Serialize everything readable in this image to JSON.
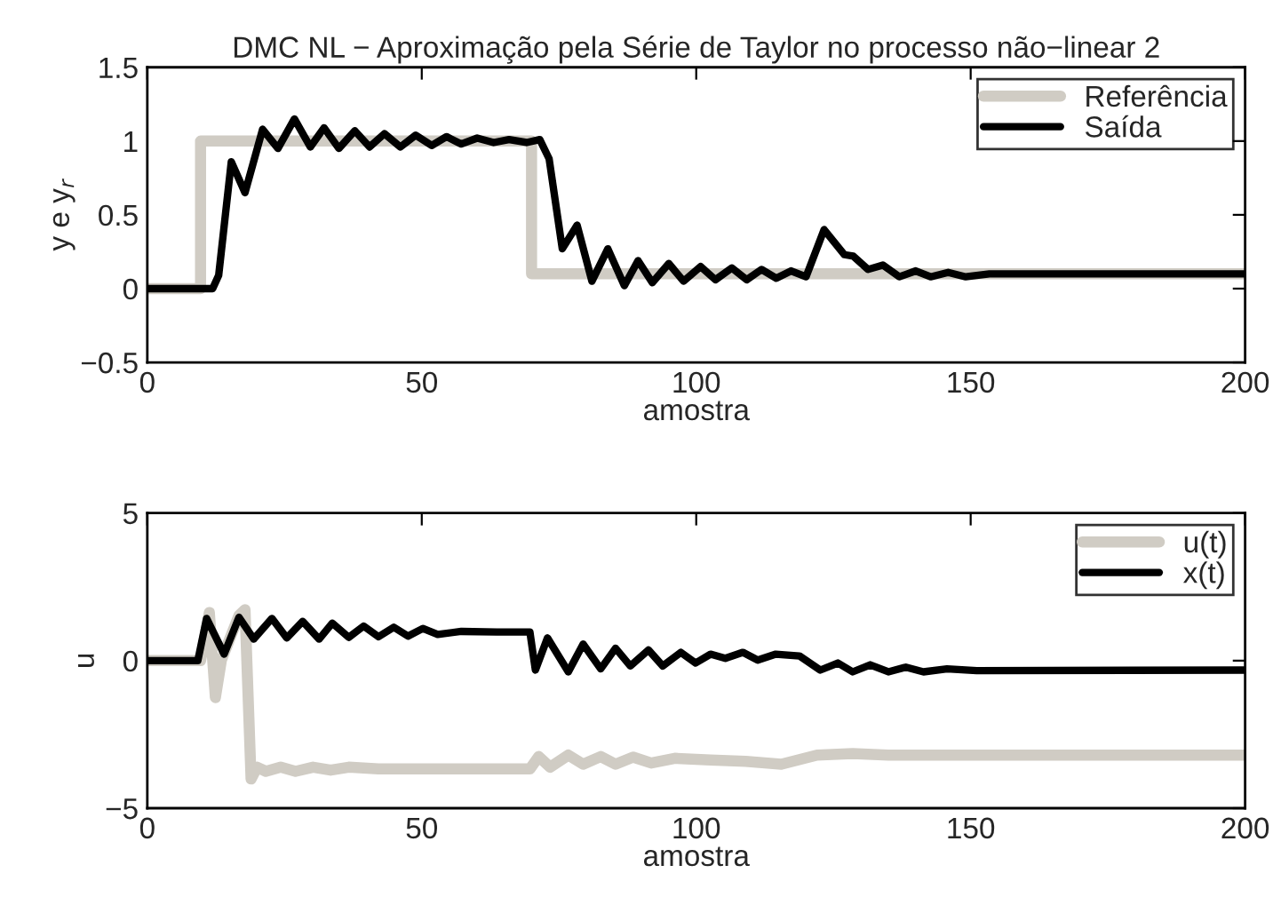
{
  "chart_data": [
    {
      "type": "line",
      "title": "DMC NL − Aproximação pela Série de Taylor no processo não−linear 2",
      "xlabel": "amostra",
      "ylabel": "y e y$_{r}$",
      "xlim": [
        0,
        200
      ],
      "xticks": [
        0,
        50,
        100,
        150,
        200
      ],
      "ylim": [
        -0.5,
        1.5
      ],
      "yticks": [
        {
          "value": -0.5,
          "label": "−0.5"
        },
        0,
        0.5,
        1,
        1.5
      ],
      "grid": false,
      "legend": "top right",
      "series": [
        {
          "name": "Referência",
          "color": "#d0ccc4",
          "x": [
            0,
            9.7,
            9.7,
            70,
            70,
            200
          ],
          "values": [
            0,
            0,
            1,
            1,
            0.1,
            0.1
          ]
        },
        {
          "name": "Saída",
          "color": "#000000",
          "x": [
            0,
            11.9,
            13,
            15.3,
            17.8,
            21,
            23.8,
            26.8,
            29.7,
            32.2,
            34.9,
            37.8,
            40.5,
            43.2,
            46.1,
            48.9,
            51.8,
            54.5,
            57.2,
            60.1,
            63.1,
            65.9,
            69.1,
            71.5,
            73.2,
            75.6,
            78.3,
            81,
            83.9,
            86.9,
            89.4,
            92,
            95,
            97.7,
            100.8,
            103.5,
            106.5,
            109.2,
            111.9,
            114.6,
            117.3,
            120,
            123.3,
            127,
            128.6,
            131.3,
            134,
            137,
            140,
            142.7,
            145.9,
            149.1,
            153.4,
            158.8,
            200
          ],
          "values": [
            0,
            0,
            0.09,
            0.86,
            0.65,
            1.08,
            0.95,
            1.15,
            0.96,
            1.09,
            0.95,
            1.07,
            0.96,
            1.05,
            0.96,
            1.04,
            0.97,
            1.03,
            0.98,
            1.02,
            0.99,
            1.01,
            0.99,
            1.01,
            0.88,
            0.27,
            0.43,
            0.05,
            0.27,
            0.02,
            0.19,
            0.04,
            0.17,
            0.05,
            0.15,
            0.06,
            0.14,
            0.06,
            0.13,
            0.07,
            0.12,
            0.08,
            0.4,
            0.23,
            0.22,
            0.13,
            0.16,
            0.08,
            0.12,
            0.08,
            0.11,
            0.08,
            0.1,
            0.1,
            0.1
          ]
        }
      ]
    },
    {
      "type": "line",
      "xlabel": "amostra",
      "ylabel": "u",
      "xlim": [
        0,
        200
      ],
      "xticks": [
        0,
        50,
        100,
        150,
        200
      ],
      "ylim": [
        -5,
        5
      ],
      "yticks": [
        {
          "value": -5,
          "label": "−5"
        },
        0,
        5
      ],
      "grid": false,
      "legend": "top right",
      "series": [
        {
          "name": "u(t)",
          "color": "#d0ccc4",
          "x": [
            0,
            9.7,
            11.3,
            12.4,
            13.5,
            16.7,
            17.8,
            18.9,
            20,
            21.6,
            24.3,
            27,
            30.2,
            33.4,
            36.7,
            42.1,
            52.9,
            69.7,
            71.3,
            73.4,
            76.7,
            79.4,
            82.6,
            85.3,
            88.5,
            91.8,
            96.1,
            102.6,
            109,
            115.5,
            122,
            128.5,
            135,
            145.7,
            200
          ],
          "values": [
            0,
            0,
            1.63,
            -1.25,
            0.02,
            1.53,
            1.73,
            -4.01,
            -3.61,
            -3.75,
            -3.61,
            -3.75,
            -3.61,
            -3.71,
            -3.61,
            -3.67,
            -3.67,
            -3.67,
            -3.25,
            -3.61,
            -3.2,
            -3.51,
            -3.25,
            -3.51,
            -3.27,
            -3.47,
            -3.31,
            -3.37,
            -3.41,
            -3.51,
            -3.2,
            -3.15,
            -3.2,
            -3.2,
            -3.2
          ]
        },
        {
          "name": "x(t)",
          "color": "#000000",
          "x": [
            0,
            9.2,
            10.8,
            14,
            16.7,
            19.4,
            22.7,
            25.4,
            28.3,
            31.3,
            33.7,
            36.7,
            39.4,
            42.1,
            44.9,
            47.5,
            50.2,
            52.9,
            57.2,
            63.7,
            69.7,
            70.7,
            72.9,
            76.7,
            79.4,
            82.6,
            85.3,
            88,
            91.3,
            93.9,
            97.2,
            99.9,
            102.6,
            105.3,
            108.5,
            111.2,
            114.5,
            118.8,
            122.6,
            125.8,
            128.5,
            131.7,
            135,
            138.2,
            141.4,
            145.7,
            151.1,
            200
          ],
          "values": [
            0,
            0,
            1.43,
            0.22,
            1.47,
            0.73,
            1.43,
            0.77,
            1.33,
            0.73,
            1.27,
            0.79,
            1.17,
            0.81,
            1.13,
            0.83,
            1.09,
            0.89,
            0.99,
            0.97,
            0.97,
            -0.32,
            0.77,
            -0.38,
            0.56,
            -0.28,
            0.42,
            -0.18,
            0.36,
            -0.18,
            0.28,
            -0.08,
            0.22,
            0.08,
            0.28,
            0.02,
            0.22,
            0.16,
            -0.32,
            -0.08,
            -0.38,
            -0.14,
            -0.38,
            -0.22,
            -0.38,
            -0.28,
            -0.34,
            -0.32
          ]
        }
      ]
    }
  ]
}
